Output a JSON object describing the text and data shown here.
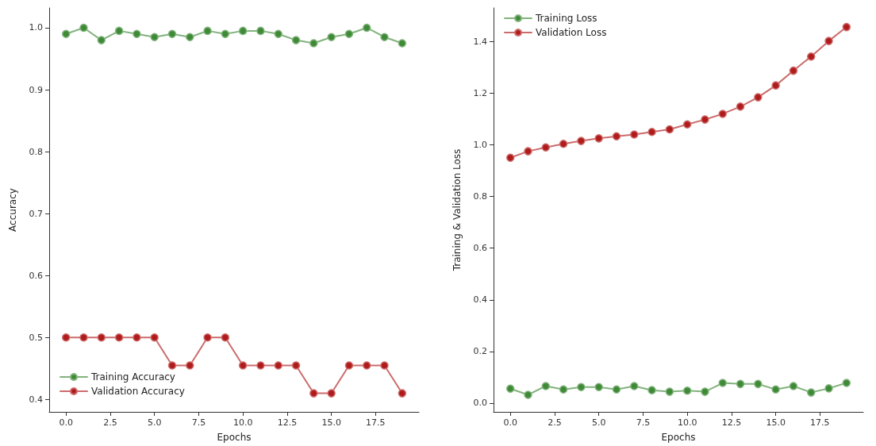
{
  "chart_data": [
    {
      "type": "line",
      "xlabel": "Epochs",
      "ylabel": "Accuracy",
      "x": [
        0,
        1,
        2,
        3,
        4,
        5,
        6,
        7,
        8,
        9,
        10,
        11,
        12,
        13,
        14,
        15,
        16,
        17,
        18,
        19
      ],
      "series": [
        {
          "name": "Training Accuracy",
          "color": "#3f8a37",
          "values": [
            0.99,
            1.0,
            0.98,
            0.995,
            0.99,
            0.985,
            0.99,
            0.985,
            0.995,
            0.99,
            0.995,
            0.995,
            0.99,
            0.98,
            0.975,
            0.985,
            0.99,
            1.0,
            0.985,
            0.975
          ]
        },
        {
          "name": "Validation Accuracy",
          "color": "#b01c1c",
          "values": [
            0.5,
            0.5,
            0.5,
            0.5,
            0.5,
            0.5,
            0.455,
            0.455,
            0.5,
            0.5,
            0.455,
            0.455,
            0.455,
            0.455,
            0.41,
            0.41,
            0.455,
            0.455,
            0.455,
            0.41
          ]
        }
      ],
      "xlim": [
        -0.95,
        19.95
      ],
      "xticks": [
        {
          "value": 0,
          "label": "0.0"
        },
        2.5,
        {
          "value": 5,
          "label": "5.0"
        },
        7.5,
        {
          "value": 10,
          "label": "10.0"
        },
        12.5,
        {
          "value": 15,
          "label": "15.0"
        },
        17.5
      ],
      "ylim": [
        0.38,
        1.032
      ],
      "yticks": [
        {
          "value": 0.4,
          "label": "0.4"
        },
        0.5,
        0.6,
        0.7,
        0.8,
        0.9,
        {
          "value": 1,
          "label": "1.0"
        }
      ],
      "legend": "bottom left",
      "marker": "circle",
      "line_style": "solid",
      "grid": false
    },
    {
      "type": "line",
      "xlabel": "Epochs",
      "ylabel": "Training & Validation Loss",
      "x": [
        0,
        1,
        2,
        3,
        4,
        5,
        6,
        7,
        8,
        9,
        10,
        11,
        12,
        13,
        14,
        15,
        16,
        17,
        18,
        19
      ],
      "series": [
        {
          "name": "Training Loss",
          "color": "#3f8a37",
          "values": [
            0.056,
            0.032,
            0.066,
            0.053,
            0.062,
            0.062,
            0.053,
            0.066,
            0.05,
            0.044,
            0.048,
            0.044,
            0.078,
            0.074,
            0.074,
            0.053,
            0.066,
            0.041,
            0.057,
            0.078
          ]
        },
        {
          "name": "Validation Loss",
          "color": "#b01c1c",
          "values": [
            0.95,
            0.975,
            0.99,
            1.004,
            1.015,
            1.025,
            1.033,
            1.04,
            1.05,
            1.06,
            1.079,
            1.098,
            1.12,
            1.148,
            1.184,
            1.23,
            1.287,
            1.342,
            1.402,
            1.456
          ]
        }
      ],
      "xlim": [
        -0.95,
        19.95
      ],
      "xticks": [
        {
          "value": 0,
          "label": "0.0"
        },
        2.5,
        {
          "value": 5,
          "label": "5.0"
        },
        7.5,
        {
          "value": 10,
          "label": "10.0"
        },
        12.5,
        {
          "value": 15,
          "label": "15.0"
        },
        17.5
      ],
      "ylim": [
        -0.034,
        1.53
      ],
      "yticks": [
        {
          "value": 0,
          "label": "0.0"
        },
        0.2,
        0.4,
        0.6,
        0.8,
        {
          "value": 1,
          "label": "1.0"
        },
        1.2,
        1.4
      ],
      "legend": "top left",
      "marker": "circle",
      "line_style": "solid",
      "grid": false
    }
  ]
}
